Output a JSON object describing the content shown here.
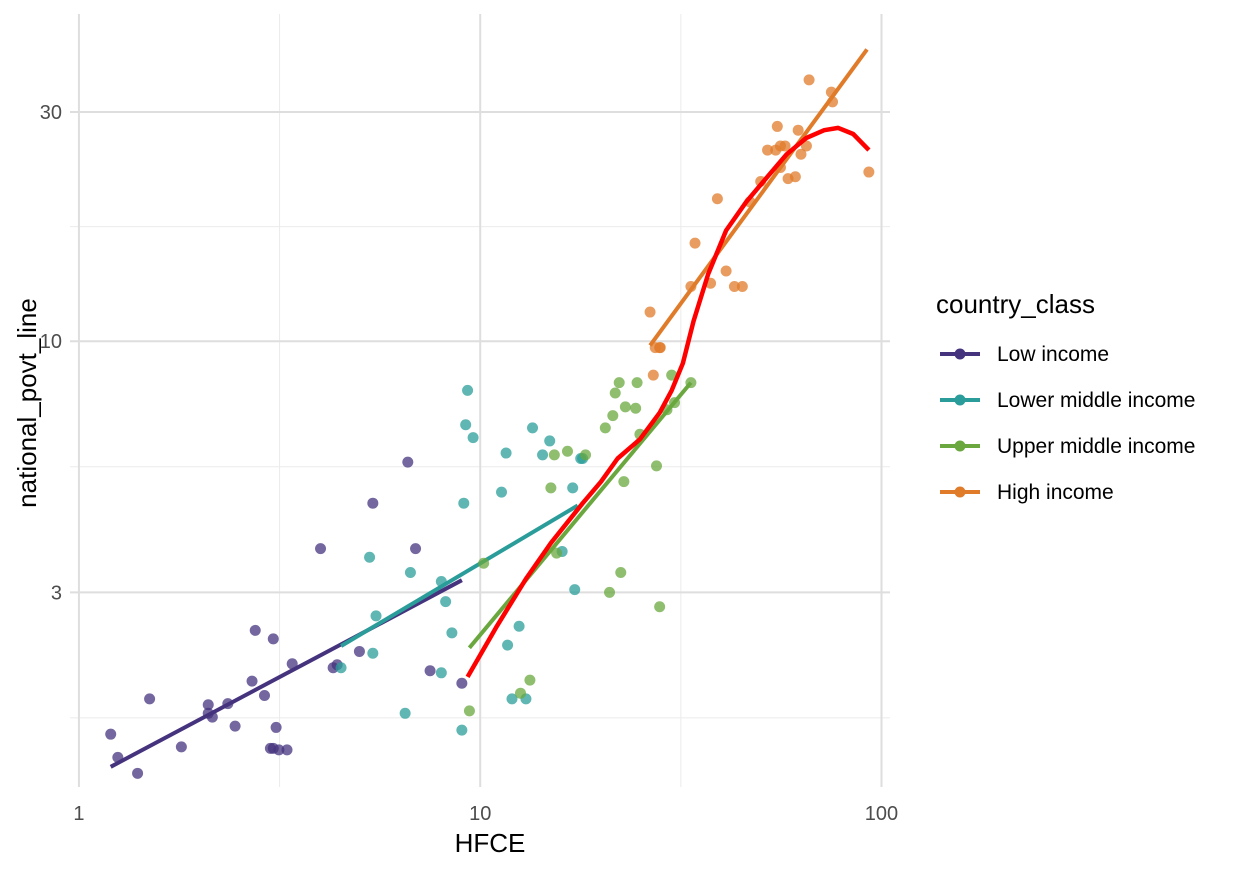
{
  "chart_data": {
    "type": "scatter",
    "xlabel": "HFCE",
    "ylabel": "national_povt_line",
    "x_scale": "log10",
    "y_scale": "log10",
    "xlim": [
      0.95,
      105
    ],
    "ylim": [
      1.18,
      48
    ],
    "x_ticks": [
      1,
      10,
      100
    ],
    "x_tick_labels": [
      "1",
      "10",
      "100"
    ],
    "y_ticks": [
      3,
      10,
      30
    ],
    "y_tick_labels": [
      "3",
      "10",
      "30"
    ],
    "grid": true,
    "legend_title": "country_class",
    "legend_position": "right",
    "series": [
      {
        "name": "Low income",
        "color": "#46337e",
        "points": [
          [
            1.2,
            1.52
          ],
          [
            1.25,
            1.36
          ],
          [
            1.4,
            1.26
          ],
          [
            1.5,
            1.8
          ],
          [
            1.8,
            1.43
          ],
          [
            2.1,
            1.75
          ],
          [
            2.1,
            1.68
          ],
          [
            2.15,
            1.65
          ],
          [
            2.35,
            1.76
          ],
          [
            2.45,
            1.58
          ],
          [
            2.7,
            1.96
          ],
          [
            2.75,
            2.5
          ],
          [
            2.9,
            1.83
          ],
          [
            3.0,
            1.42
          ],
          [
            3.05,
            1.42
          ],
          [
            3.05,
            2.4
          ],
          [
            3.1,
            1.57
          ],
          [
            3.15,
            1.41
          ],
          [
            3.3,
            1.41
          ],
          [
            3.4,
            2.13
          ],
          [
            4.0,
            3.7
          ],
          [
            4.3,
            2.09
          ],
          [
            4.4,
            2.12
          ],
          [
            5.0,
            2.26
          ],
          [
            5.4,
            4.6
          ],
          [
            6.6,
            5.6
          ],
          [
            6.9,
            3.7
          ],
          [
            7.5,
            2.06
          ],
          [
            9.0,
            1.94
          ]
        ],
        "trend": [
          [
            1.2,
            1.3
          ],
          [
            9.0,
            3.18
          ]
        ]
      },
      {
        "name": "Lower middle income",
        "color": "#2a9d9a",
        "points": [
          [
            4.5,
            2.09
          ],
          [
            5.3,
            3.55
          ],
          [
            5.4,
            2.24
          ],
          [
            5.5,
            2.68
          ],
          [
            6.5,
            1.68
          ],
          [
            6.7,
            3.3
          ],
          [
            8.0,
            2.04
          ],
          [
            8.0,
            3.16
          ],
          [
            8.2,
            2.87
          ],
          [
            8.5,
            2.47
          ],
          [
            9.0,
            1.55
          ],
          [
            9.1,
            4.6
          ],
          [
            9.2,
            6.7
          ],
          [
            9.3,
            7.9
          ],
          [
            9.6,
            6.3
          ],
          [
            11.3,
            4.85
          ],
          [
            11.6,
            5.85
          ],
          [
            11.7,
            2.33
          ],
          [
            12.0,
            1.8
          ],
          [
            12.5,
            2.55
          ],
          [
            13.0,
            1.8
          ],
          [
            13.5,
            6.6
          ],
          [
            14.3,
            5.8
          ],
          [
            14.9,
            6.2
          ],
          [
            16.0,
            3.65
          ],
          [
            17.0,
            4.95
          ],
          [
            17.2,
            3.04
          ],
          [
            17.8,
            5.7
          ],
          [
            18.0,
            5.7
          ]
        ],
        "trend": [
          [
            4.5,
            2.32
          ],
          [
            17.5,
            4.55
          ]
        ]
      },
      {
        "name": "Upper middle income",
        "color": "#6aa83f",
        "points": [
          [
            9.4,
            1.7
          ],
          [
            10.2,
            3.45
          ],
          [
            12.6,
            1.85
          ],
          [
            13.3,
            1.97
          ],
          [
            15.0,
            4.95
          ],
          [
            15.3,
            5.8
          ],
          [
            15.5,
            3.62
          ],
          [
            16.5,
            5.9
          ],
          [
            18.3,
            5.8
          ],
          [
            20.5,
            6.6
          ],
          [
            21.0,
            3.0
          ],
          [
            21.4,
            7.0
          ],
          [
            21.7,
            7.8
          ],
          [
            22.2,
            8.2
          ],
          [
            22.4,
            3.3
          ],
          [
            22.8,
            5.1
          ],
          [
            23.0,
            7.3
          ],
          [
            24.4,
            7.25
          ],
          [
            24.6,
            8.2
          ],
          [
            25.0,
            6.4
          ],
          [
            27.5,
            5.5
          ],
          [
            28.0,
            2.8
          ],
          [
            29.2,
            7.2
          ],
          [
            30.5,
            7.45
          ],
          [
            30.0,
            8.5
          ],
          [
            33.5,
            8.2
          ]
        ],
        "trend": [
          [
            9.4,
            2.3
          ],
          [
            33.5,
            8.2
          ]
        ]
      },
      {
        "name": "High income",
        "color": "#e07b2a",
        "points": [
          [
            26.5,
            11.5
          ],
          [
            27.0,
            8.5
          ],
          [
            27.3,
            9.7
          ],
          [
            28.0,
            9.7
          ],
          [
            28.1,
            9.7
          ],
          [
            33.5,
            13.0
          ],
          [
            34.3,
            16.0
          ],
          [
            37.5,
            13.2
          ],
          [
            39.0,
            19.8
          ],
          [
            41.0,
            14.0
          ],
          [
            43.0,
            13.0
          ],
          [
            45.0,
            13.0
          ],
          [
            47.0,
            19.5
          ],
          [
            50.0,
            21.5
          ],
          [
            52.0,
            25.0
          ],
          [
            54.5,
            25.0
          ],
          [
            55.0,
            28.0
          ],
          [
            56.0,
            25.5
          ],
          [
            56.0,
            23.0
          ],
          [
            57.5,
            25.5
          ],
          [
            58.5,
            21.8
          ],
          [
            61.0,
            22.0
          ],
          [
            62.0,
            27.5
          ],
          [
            63.0,
            24.5
          ],
          [
            65.0,
            25.5
          ],
          [
            66.0,
            35.0
          ],
          [
            75.0,
            33.0
          ],
          [
            75.5,
            31.5
          ],
          [
            93.0,
            22.5
          ]
        ],
        "trend": [
          [
            26.5,
            9.8
          ],
          [
            92.0,
            40.5
          ]
        ]
      },
      {
        "name": "",
        "color": "#ff0000",
        "role": "overall-smooth",
        "points": [],
        "trend": [
          [
            9.3,
            2.0
          ],
          [
            11.0,
            2.55
          ],
          [
            13.0,
            3.2
          ],
          [
            15.0,
            3.8
          ],
          [
            18.0,
            4.6
          ],
          [
            20.0,
            5.1
          ],
          [
            22.0,
            5.7
          ],
          [
            25.0,
            6.25
          ],
          [
            28.0,
            7.1
          ],
          [
            30.0,
            7.9
          ],
          [
            32.0,
            9.0
          ],
          [
            34.0,
            11.0
          ],
          [
            37.0,
            13.8
          ],
          [
            41.0,
            17.0
          ],
          [
            46.0,
            19.5
          ],
          [
            52.0,
            22.0
          ],
          [
            58.0,
            24.5
          ],
          [
            65.0,
            26.5
          ],
          [
            72.0,
            27.5
          ],
          [
            78.0,
            27.8
          ],
          [
            85.0,
            27.0
          ],
          [
            93.0,
            25.0
          ]
        ]
      }
    ]
  }
}
